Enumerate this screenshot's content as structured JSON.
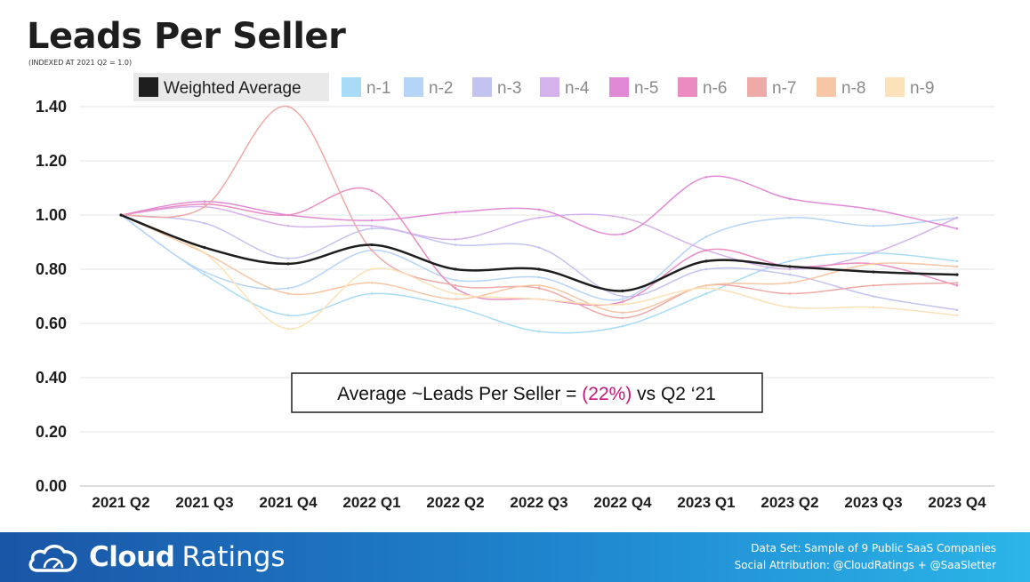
{
  "header": {
    "title": "Leads Per Seller",
    "subtitle": "(INDEXED AT 2021 Q2 = 1.0)"
  },
  "annotation": {
    "prefix": "Average ~Leads Per Seller = ",
    "highlight": "(22%)",
    "suffix": " vs Q2 ‘21",
    "highlight_color": "#c4167a"
  },
  "footer": {
    "brand_bold": "Cloud",
    "brand_light": "Ratings",
    "line1": "Data Set: Sample of 9 Public SaaS Companies",
    "line2": "Social Attribution: @CloudRatings + @SaaSletter"
  },
  "chart_data": {
    "type": "line",
    "categories": [
      "2021 Q2",
      "2021 Q3",
      "2021 Q4",
      "2022 Q1",
      "2022 Q2",
      "2022 Q3",
      "2022 Q4",
      "2023 Q1",
      "2023 Q2",
      "2023 Q3",
      "2023 Q4"
    ],
    "ylim": [
      0,
      1.4
    ],
    "yticks": [
      "0.00",
      "0.20",
      "0.40",
      "0.60",
      "0.80",
      "1.00",
      "1.20",
      "1.40"
    ],
    "grid": true,
    "legend_position": "top",
    "series": [
      {
        "name": "Weighted Average",
        "color": "#1e1e1e",
        "width": 2.5,
        "values": [
          1.0,
          0.88,
          0.82,
          0.89,
          0.8,
          0.8,
          0.72,
          0.83,
          0.81,
          0.79,
          0.78
        ]
      },
      {
        "name": "n-1",
        "color": "#a8dcf6",
        "width": 1.5,
        "values": [
          1.0,
          0.78,
          0.63,
          0.71,
          0.66,
          0.57,
          0.59,
          0.71,
          0.83,
          0.86,
          0.83
        ]
      },
      {
        "name": "n-2",
        "color": "#b6d4f7",
        "width": 1.5,
        "values": [
          1.0,
          0.79,
          0.73,
          0.87,
          0.76,
          0.77,
          0.69,
          0.92,
          0.99,
          0.96,
          0.99
        ]
      },
      {
        "name": "n-3",
        "color": "#c3c3f0",
        "width": 1.5,
        "values": [
          1.0,
          0.97,
          0.84,
          0.95,
          0.89,
          0.88,
          0.7,
          0.8,
          0.78,
          0.7,
          0.65
        ]
      },
      {
        "name": "n-4",
        "color": "#d4b3ec",
        "width": 1.5,
        "values": [
          1.0,
          1.03,
          0.96,
          0.96,
          0.91,
          0.99,
          0.99,
          0.87,
          0.8,
          0.86,
          0.99
        ]
      },
      {
        "name": "n-5",
        "color": "#e08ad6",
        "width": 1.5,
        "values": [
          1.0,
          1.05,
          1.0,
          0.98,
          1.01,
          1.02,
          0.93,
          1.14,
          1.06,
          1.02,
          0.95
        ]
      },
      {
        "name": "n-6",
        "color": "#ea8cc1",
        "width": 1.5,
        "values": [
          1.0,
          1.04,
          1.0,
          1.09,
          0.73,
          0.69,
          0.68,
          0.87,
          0.81,
          0.82,
          0.74
        ]
      },
      {
        "name": "n-7",
        "color": "#eeaaa6",
        "width": 1.5,
        "values": [
          1.0,
          1.03,
          1.4,
          0.87,
          0.74,
          0.73,
          0.62,
          0.74,
          0.71,
          0.74,
          0.75
        ]
      },
      {
        "name": "n-8",
        "color": "#f7c6a4",
        "width": 1.5,
        "values": [
          1.0,
          0.86,
          0.71,
          0.75,
          0.69,
          0.74,
          0.64,
          0.74,
          0.75,
          0.82,
          0.81
        ]
      },
      {
        "name": "n-9",
        "color": "#fbe2b8",
        "width": 1.5,
        "values": [
          1.0,
          0.86,
          0.58,
          0.8,
          0.71,
          0.69,
          0.67,
          0.73,
          0.66,
          0.66,
          0.63
        ]
      }
    ]
  }
}
